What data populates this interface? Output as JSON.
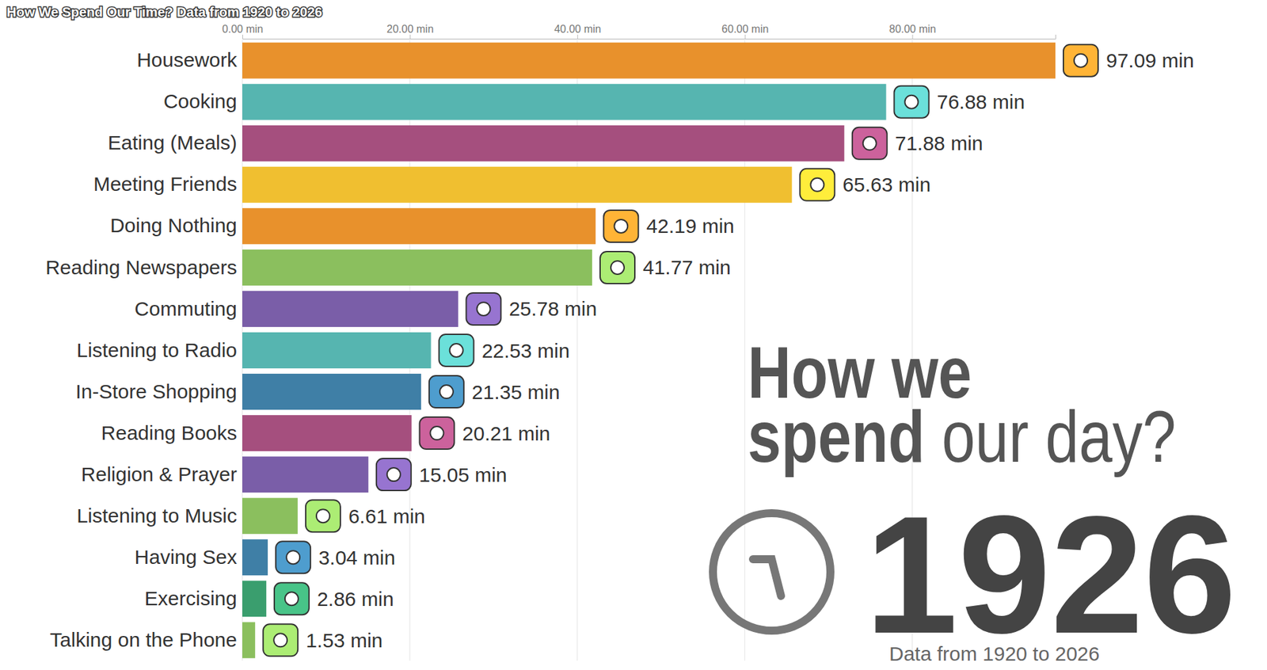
{
  "chart_data": {
    "type": "bar",
    "orientation": "horizontal",
    "title": "How We Spend Our Time? Data from 1920 to 2026",
    "categories": [
      "Housework",
      "Cooking",
      "Eating (Meals)",
      "Meeting Friends",
      "Doing Nothing",
      "Reading Newspapers",
      "Commuting",
      "Listening to Radio",
      "In-Store Shopping",
      "Reading Books",
      "Religion & Prayer",
      "Listening to Music",
      "Having Sex",
      "Exercising",
      "Talking on the Phone"
    ],
    "values": [
      97.09,
      76.88,
      71.88,
      65.63,
      42.19,
      41.77,
      25.78,
      22.53,
      21.35,
      20.21,
      15.05,
      6.61,
      3.04,
      2.86,
      1.53
    ],
    "value_labels": [
      "97.09 min",
      "76.88 min",
      "71.88 min",
      "65.63 min",
      "42.19 min",
      "41.77 min",
      "25.78 min",
      "22.53 min",
      "21.35 min",
      "20.21 min",
      "15.05 min",
      "6.61 min",
      "3.04 min",
      "2.86 min",
      "1.53 min"
    ],
    "colors": [
      "#e8912c",
      "#56b5b0",
      "#a54f7e",
      "#f0bf30",
      "#e8912c",
      "#8bbf5e",
      "#7a5ea8",
      "#56b5b0",
      "#3f7fa6",
      "#a54f7e",
      "#7a5ea8",
      "#8bbf5e",
      "#3f7fa6",
      "#3a9e6e",
      "#8bbf5e"
    ],
    "xlim": [
      0,
      97.09
    ],
    "xticks": [
      {
        "value": 0,
        "label": "0.00 min"
      },
      {
        "value": 20,
        "label": "20.00 min"
      },
      {
        "value": 40,
        "label": "40.00 min"
      },
      {
        "value": 60,
        "label": "60.00 min"
      },
      {
        "value": 80,
        "label": "80.00 min"
      }
    ],
    "grid": true,
    "data_labels": true,
    "annotations": [
      "How we",
      "spend",
      "our day?",
      "1926",
      "Data from 1920 to 2026"
    ]
  }
}
